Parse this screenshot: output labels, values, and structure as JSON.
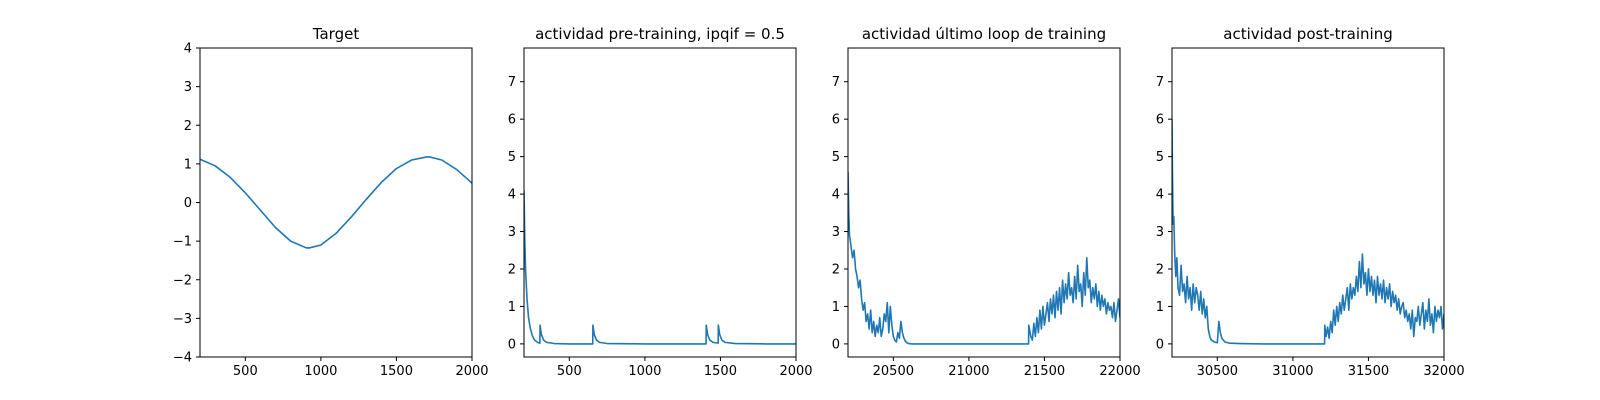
{
  "chart_data": [
    {
      "type": "line",
      "title": "Target",
      "xlabel": "",
      "ylabel": "",
      "xlim": [
        200,
        2000
      ],
      "ylim": [
        -4,
        4
      ],
      "xticks": [
        500,
        1000,
        1500,
        2000
      ],
      "xtick_labels": [
        "500",
        "1000",
        "1500",
        "2000"
      ],
      "yticks": [
        -4,
        -3,
        -2,
        -1,
        0,
        1,
        2,
        3,
        4
      ],
      "ytick_labels": [
        "−4",
        "−3",
        "−2",
        "−1",
        "0",
        "1",
        "2",
        "3",
        "4"
      ],
      "grid": false,
      "color": "#1f77b4",
      "series": [
        {
          "x": [
            200,
            300,
            400,
            500,
            600,
            700,
            800,
            900,
            920,
            1000,
            1100,
            1200,
            1300,
            1400,
            1500,
            1600,
            1700,
            1720,
            1800,
            1900,
            2000
          ],
          "y": [
            1.12,
            0.95,
            0.65,
            0.25,
            -0.2,
            -0.65,
            -1.0,
            -1.17,
            -1.18,
            -1.1,
            -0.8,
            -0.38,
            0.08,
            0.52,
            0.88,
            1.1,
            1.18,
            1.18,
            1.1,
            0.85,
            0.5
          ]
        }
      ]
    },
    {
      "type": "line",
      "title": "actividad pre-training, ipqif = 0.5",
      "xlabel": "",
      "ylabel": "",
      "xlim": [
        200,
        2000
      ],
      "ylim": [
        -0.35,
        7.9
      ],
      "xticks": [
        500,
        1000,
        1500,
        2000
      ],
      "xtick_labels": [
        "500",
        "1000",
        "1500",
        "2000"
      ],
      "yticks": [
        0,
        1,
        2,
        3,
        4,
        5,
        6,
        7
      ],
      "ytick_labels": [
        "0",
        "1",
        "2",
        "3",
        "4",
        "5",
        "6",
        "7"
      ],
      "grid": false,
      "color": "#1f77b4",
      "series": [
        {
          "x": [
            200,
            205,
            210,
            220,
            230,
            240,
            255,
            270,
            290,
            305,
            306,
            315,
            330,
            350,
            400,
            500,
            655,
            656,
            665,
            680,
            700,
            750,
            1000,
            1200,
            1405,
            1406,
            1415,
            1430,
            1450,
            1485,
            1486,
            1495,
            1510,
            1530,
            1600,
            1800,
            2000
          ],
          "y": [
            4.1,
            2.8,
            2.0,
            1.2,
            0.7,
            0.45,
            0.22,
            0.1,
            0.04,
            0.02,
            0.5,
            0.25,
            0.1,
            0.04,
            0.01,
            0.0,
            0.0,
            0.5,
            0.25,
            0.1,
            0.04,
            0.01,
            0.0,
            0.0,
            0.0,
            0.5,
            0.25,
            0.1,
            0.04,
            0.02,
            0.5,
            0.25,
            0.1,
            0.04,
            0.01,
            0.0,
            0.0
          ]
        }
      ]
    },
    {
      "type": "line",
      "title": "actividad último loop de training",
      "xlabel": "",
      "ylabel": "",
      "xlim": [
        20200,
        22000
      ],
      "ylim": [
        -0.35,
        7.9
      ],
      "xticks": [
        20500,
        21000,
        21500,
        22000
      ],
      "xtick_labels": [
        "20500",
        "21000",
        "21500",
        "22000"
      ],
      "yticks": [
        0,
        1,
        2,
        3,
        4,
        5,
        6,
        7
      ],
      "ytick_labels": [
        "0",
        "1",
        "2",
        "3",
        "4",
        "5",
        "6",
        "7"
      ],
      "grid": false,
      "color": "#1f77b4",
      "series": [
        {
          "x": [
            20200,
            20205,
            20210,
            20220,
            20230,
            20240,
            20250,
            20260,
            20270,
            20280,
            20290,
            20300,
            20310,
            20320,
            20330,
            20340,
            20350,
            20360,
            20370,
            20380,
            20390,
            20400,
            20410,
            20420,
            20430,
            20440,
            20450,
            20460,
            20470,
            20480,
            20490,
            20500,
            20510,
            20520,
            20530,
            20540,
            20550,
            20560,
            20570,
            20580,
            20590,
            20600,
            20620,
            20650,
            20700,
            21000,
            21395,
            21396,
            21410,
            21420,
            21430,
            21440,
            21450,
            21460,
            21470,
            21480,
            21490,
            21500,
            21510,
            21520,
            21530,
            21540,
            21550,
            21560,
            21570,
            21580,
            21590,
            21600,
            21610,
            21620,
            21630,
            21640,
            21650,
            21660,
            21670,
            21680,
            21690,
            21700,
            21710,
            21720,
            21730,
            21740,
            21750,
            21760,
            21770,
            21780,
            21790,
            21800,
            21810,
            21820,
            21830,
            21840,
            21850,
            21860,
            21870,
            21880,
            21890,
            21900,
            21910,
            21920,
            21930,
            21940,
            21950,
            21960,
            21970,
            21980,
            21990,
            22000
          ],
          "y": [
            4.6,
            3.5,
            2.9,
            2.6,
            2.3,
            2.5,
            2.0,
            1.8,
            1.5,
            1.7,
            1.2,
            0.9,
            1.1,
            0.6,
            0.8,
            0.4,
            0.9,
            0.3,
            0.6,
            0.2,
            0.5,
            0.3,
            0.7,
            0.2,
            0.4,
            0.8,
            0.6,
            1.1,
            0.3,
            1.0,
            0.5,
            0.2,
            0.1,
            0.05,
            0.3,
            0.15,
            0.6,
            0.3,
            0.15,
            0.07,
            0.03,
            0.01,
            0.0,
            0.0,
            0.0,
            0.0,
            0.0,
            0.5,
            0.2,
            0.1,
            0.55,
            0.2,
            0.7,
            0.3,
            0.9,
            0.4,
            1.0,
            0.5,
            0.8,
            1.1,
            0.6,
            1.2,
            0.8,
            1.3,
            0.7,
            1.4,
            0.9,
            1.5,
            0.8,
            1.7,
            1.1,
            1.6,
            1.2,
            1.9,
            1.3,
            1.5,
            1.1,
            1.8,
            1.2,
            2.1,
            1.4,
            1.6,
            1.0,
            1.9,
            1.3,
            2.3,
            1.5,
            1.7,
            1.1,
            1.5,
            1.2,
            1.6,
            1.0,
            1.4,
            0.9,
            1.3,
            1.0,
            1.2,
            0.8,
            1.1,
            0.9,
            1.0,
            0.7,
            1.1,
            0.6,
            0.9,
            1.2,
            0.7
          ]
        }
      ]
    },
    {
      "type": "line",
      "title": "actividad post-training",
      "xlabel": "",
      "ylabel": "",
      "xlim": [
        30200,
        32000
      ],
      "ylim": [
        -0.35,
        7.9
      ],
      "xticks": [
        30500,
        31000,
        31500,
        32000
      ],
      "xtick_labels": [
        "30500",
        "31000",
        "31500",
        "32000"
      ],
      "yticks": [
        0,
        1,
        2,
        3,
        4,
        5,
        6,
        7
      ],
      "ytick_labels": [
        "0",
        "1",
        "2",
        "3",
        "4",
        "5",
        "6",
        "7"
      ],
      "grid": false,
      "color": "#1f77b4",
      "series": [
        {
          "x": [
            30200,
            30203,
            30207,
            30212,
            30218,
            30225,
            30232,
            30240,
            30250,
            30260,
            30270,
            30280,
            30290,
            30300,
            30310,
            30320,
            30330,
            30340,
            30350,
            30360,
            30370,
            30380,
            30390,
            30400,
            30410,
            30420,
            30430,
            30440,
            30450,
            30460,
            30470,
            30480,
            30490,
            30500,
            30510,
            30520,
            30530,
            30550,
            30580,
            30650,
            30800,
            31000,
            31200,
            31210,
            31211,
            31220,
            31230,
            31240,
            31250,
            31260,
            31270,
            31280,
            31290,
            31300,
            31310,
            31320,
            31330,
            31340,
            31350,
            31360,
            31370,
            31380,
            31390,
            31400,
            31410,
            31420,
            31430,
            31440,
            31450,
            31460,
            31470,
            31480,
            31490,
            31500,
            31510,
            31520,
            31530,
            31540,
            31550,
            31560,
            31570,
            31580,
            31590,
            31600,
            31610,
            31620,
            31630,
            31640,
            31650,
            31660,
            31670,
            31680,
            31690,
            31700,
            31710,
            31720,
            31730,
            31740,
            31750,
            31760,
            31770,
            31780,
            31790,
            31800,
            31810,
            31820,
            31830,
            31840,
            31850,
            31860,
            31870,
            31880,
            31890,
            31900,
            31910,
            31920,
            31930,
            31940,
            31950,
            31960,
            31970,
            31980,
            31990,
            32000
          ],
          "y": [
            6.0,
            4.6,
            3.2,
            3.4,
            2.4,
            1.8,
            2.3,
            1.5,
            1.3,
            2.1,
            1.4,
            1.6,
            1.1,
            1.8,
            1.2,
            1.5,
            0.9,
            1.6,
            1.1,
            1.5,
            1.3,
            0.9,
            1.4,
            0.8,
            1.2,
            0.7,
            1.0,
            0.4,
            0.2,
            0.1,
            0.08,
            0.05,
            0.04,
            0.03,
            0.6,
            0.3,
            0.15,
            0.05,
            0.02,
            0.01,
            0.0,
            0.0,
            0.0,
            0.0,
            0.5,
            0.2,
            0.45,
            0.15,
            0.6,
            0.3,
            0.9,
            0.5,
            1.0,
            0.6,
            1.1,
            0.8,
            1.3,
            0.9,
            1.2,
            1.5,
            0.9,
            1.6,
            1.2,
            1.5,
            1.3,
            1.8,
            1.4,
            2.2,
            1.5,
            2.4,
            1.6,
            1.9,
            1.3,
            2.0,
            1.4,
            1.8,
            1.3,
            1.7,
            1.1,
            1.8,
            1.3,
            1.6,
            1.2,
            1.7,
            1.1,
            1.5,
            1.2,
            1.6,
            1.0,
            1.4,
            1.1,
            1.3,
            0.9,
            1.2,
            0.8,
            1.0,
            1.1,
            0.7,
            0.9,
            0.6,
            0.8,
            0.4,
            0.9,
            0.2,
            0.7,
            0.6,
            1.0,
            0.5,
            0.8,
            1.1,
            0.4,
            0.9,
            0.6,
            1.2,
            0.5,
            0.8,
            0.3,
            1.0,
            0.6,
            0.9,
            0.7,
            1.0,
            0.4,
            0.8
          ]
        }
      ]
    }
  ]
}
